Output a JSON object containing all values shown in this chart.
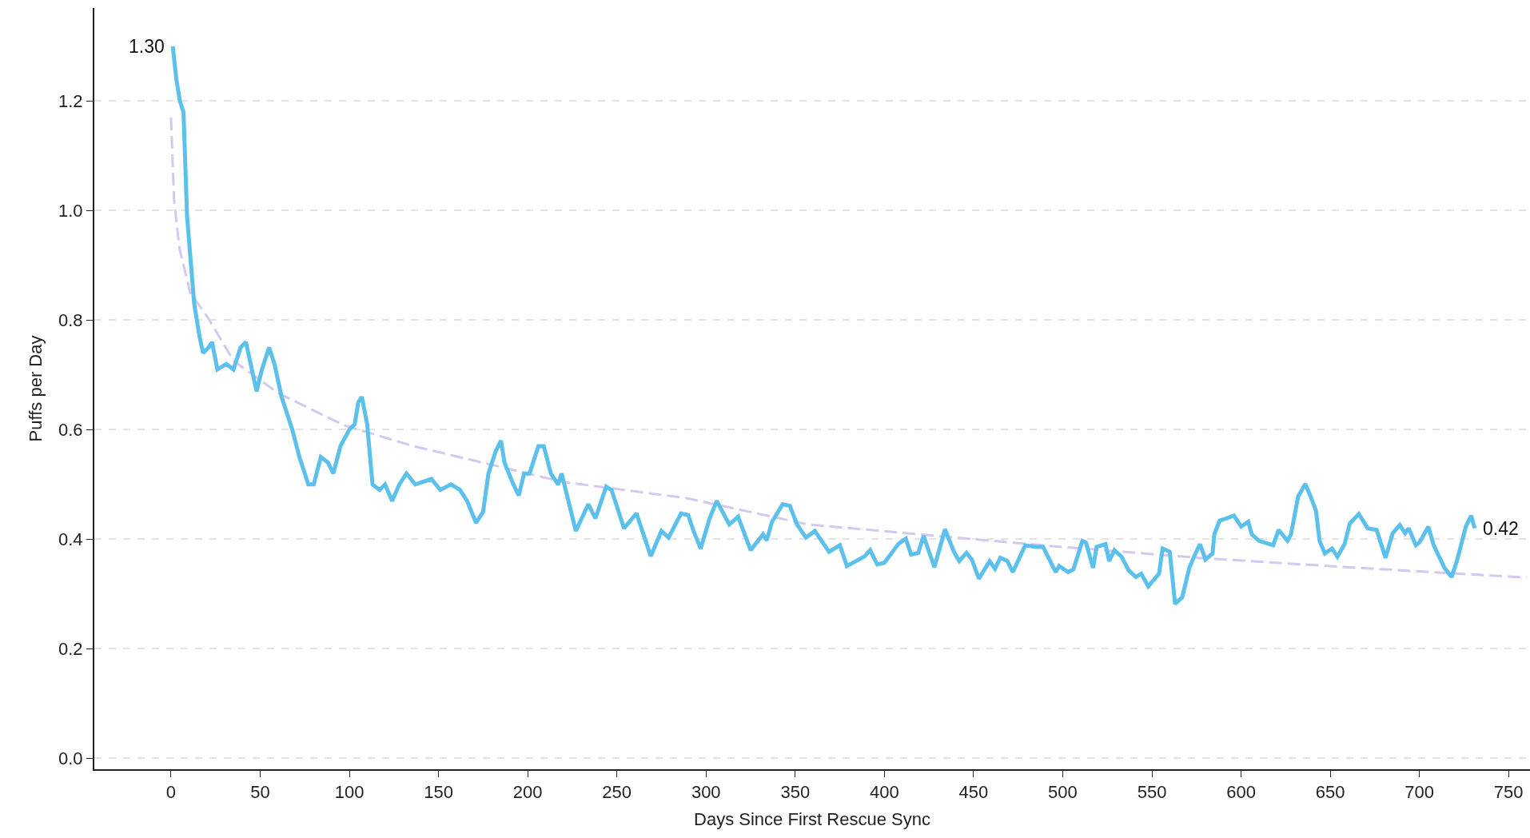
{
  "chart_data": {
    "type": "line",
    "xlabel": "Days Since First Rescue Sync",
    "ylabel": "Puffs per Day",
    "xlim": [
      -43,
      762
    ],
    "xticks": [
      0,
      50,
      100,
      150,
      200,
      250,
      300,
      350,
      400,
      450,
      500,
      550,
      600,
      650,
      700,
      750
    ],
    "ylim": [
      -0.02,
      1.37
    ],
    "yticks": [
      {
        "value": 0,
        "label": "0.0"
      },
      0.2,
      0.4,
      0.6,
      0.8,
      {
        "value": 1,
        "label": "1.0"
      },
      1.2
    ],
    "grid": "y",
    "annotations": [
      {
        "text": "1.30",
        "x": 1,
        "y": 1.3
      },
      {
        "text": "0.42",
        "x": 731,
        "y": 0.42
      }
    ],
    "series": [
      {
        "color": "#5bc0eb",
        "line_style": "solid",
        "x": [
          1,
          3,
          5,
          7,
          9,
          13,
          16,
          18,
          21,
          23,
          26,
          31,
          35,
          39,
          42,
          46,
          48,
          51,
          55,
          58,
          62,
          65,
          68,
          72,
          77,
          80,
          84,
          88,
          91,
          95,
          100,
          103,
          105,
          107,
          110,
          113,
          117,
          120,
          124,
          128,
          132,
          137,
          146,
          151,
          157,
          162,
          166,
          171,
          175,
          178,
          182,
          185,
          187,
          192,
          195,
          198,
          201,
          206,
          209,
          213,
          217,
          219,
          227,
          234,
          238,
          244,
          247,
          254,
          261,
          269,
          275,
          279,
          286,
          290,
          293,
          297,
          302,
          306,
          313,
          318,
          325,
          332,
          334,
          337,
          343,
          347,
          351,
          356,
          361,
          369,
          375,
          379,
          389,
          392,
          396,
          400,
          408,
          412,
          415,
          419,
          422,
          428,
          434,
          439,
          442,
          446,
          449,
          453,
          459,
          462,
          465,
          469,
          472,
          479,
          485,
          489,
          496,
          498,
          503,
          506,
          511,
          513,
          517,
          519,
          524,
          526,
          529,
          533,
          537,
          541,
          544,
          548,
          554,
          556,
          560,
          563,
          567,
          571,
          574,
          577,
          580,
          584,
          585,
          588,
          591,
          596,
          600,
          604,
          606,
          610,
          618,
          621,
          626,
          628,
          632,
          636,
          639,
          642,
          644,
          647,
          651,
          654,
          658,
          661,
          666,
          671,
          676,
          681,
          685,
          689,
          692,
          694,
          698,
          700,
          705,
          708,
          714,
          718,
          721,
          726,
          729,
          731
        ],
        "values": [
          1.3,
          1.24,
          1.2,
          1.18,
          0.99,
          0.83,
          0.77,
          0.74,
          0.75,
          0.76,
          0.71,
          0.72,
          0.71,
          0.75,
          0.76,
          0.7,
          0.67,
          0.71,
          0.75,
          0.72,
          0.66,
          0.63,
          0.6,
          0.55,
          0.5,
          0.5,
          0.55,
          0.54,
          0.52,
          0.57,
          0.6,
          0.61,
          0.65,
          0.66,
          0.61,
          0.5,
          0.49,
          0.5,
          0.47,
          0.5,
          0.52,
          0.5,
          0.51,
          0.49,
          0.5,
          0.49,
          0.47,
          0.43,
          0.45,
          0.52,
          0.56,
          0.58,
          0.54,
          0.5,
          0.48,
          0.52,
          0.52,
          0.57,
          0.57,
          0.52,
          0.5,
          0.52,
          0.415,
          0.464,
          0.438,
          0.496,
          0.49,
          0.42,
          0.447,
          0.369,
          0.415,
          0.403,
          0.447,
          0.444,
          0.415,
          0.383,
          0.438,
          0.47,
          0.427,
          0.441,
          0.38,
          0.409,
          0.398,
          0.432,
          0.464,
          0.461,
          0.427,
          0.403,
          0.415,
          0.377,
          0.389,
          0.351,
          0.369,
          0.38,
          0.354,
          0.357,
          0.392,
          0.401,
          0.372,
          0.375,
          0.406,
          0.349,
          0.418,
          0.377,
          0.36,
          0.375,
          0.363,
          0.328,
          0.36,
          0.346,
          0.366,
          0.36,
          0.34,
          0.389,
          0.386,
          0.386,
          0.34,
          0.351,
          0.34,
          0.345,
          0.397,
          0.394,
          0.348,
          0.386,
          0.391,
          0.36,
          0.38,
          0.368,
          0.343,
          0.331,
          0.337,
          0.314,
          0.337,
          0.383,
          0.377,
          0.282,
          0.294,
          0.348,
          0.371,
          0.391,
          0.363,
          0.374,
          0.409,
          0.434,
          0.437,
          0.443,
          0.423,
          0.432,
          0.409,
          0.397,
          0.389,
          0.417,
          0.397,
          0.409,
          0.478,
          0.501,
          0.478,
          0.452,
          0.397,
          0.374,
          0.383,
          0.368,
          0.391,
          0.429,
          0.446,
          0.42,
          0.417,
          0.366,
          0.411,
          0.426,
          0.411,
          0.42,
          0.389,
          0.394,
          0.423,
          0.389,
          0.348,
          0.331,
          0.36,
          0.423,
          0.443,
          0.42
        ]
      },
      {
        "type": "line",
        "color": "#d4c8f0",
        "line_style": "dashed",
        "x": [
          0,
          1.7,
          4.8,
          10.8,
          20.6,
          35,
          60,
          97,
          136,
          195,
          219,
          289,
          357,
          492,
          576,
          664,
          760
        ],
        "values": [
          1.17,
          1.02,
          0.93,
          0.85,
          0.805,
          0.726,
          0.667,
          0.608,
          0.57,
          0.524,
          0.505,
          0.475,
          0.427,
          0.388,
          0.366,
          0.348,
          0.33
        ]
      }
    ]
  }
}
